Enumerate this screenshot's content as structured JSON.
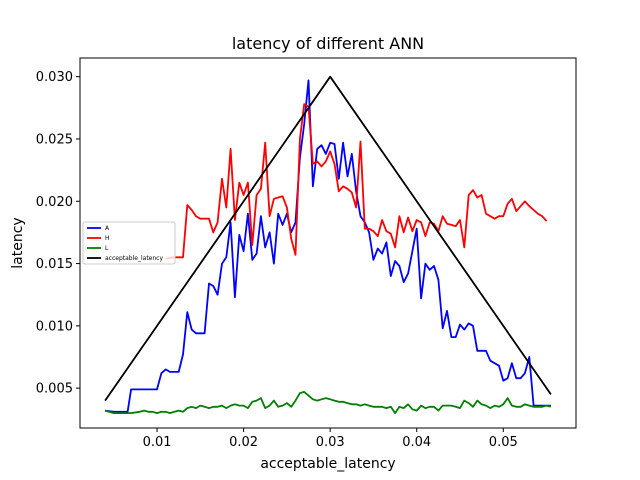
{
  "chart_data": {
    "type": "line",
    "title": "latency of different ANN",
    "xlabel": "acceptable_latency",
    "ylabel": "latency",
    "xlim": [
      0.0011,
      0.0584
    ],
    "ylim": [
      0.0018,
      0.0315
    ],
    "x_ticks": [
      0.01,
      0.02,
      0.03,
      0.04,
      0.05
    ],
    "x_tick_labels": [
      "0.01",
      "0.02",
      "0.03",
      "0.04",
      "0.05"
    ],
    "y_ticks": [
      0.005,
      0.01,
      0.015,
      0.02,
      0.025,
      0.03
    ],
    "y_tick_labels": [
      "0.005",
      "0.010",
      "0.015",
      "0.020",
      "0.025",
      "0.030"
    ],
    "grid": false,
    "legend_position": "center-left",
    "series": [
      {
        "name": "A",
        "color": "#0000ff",
        "points": [
          [
            0.004,
            0.0032
          ],
          [
            0.005,
            0.0031
          ],
          [
            0.006,
            0.0031
          ],
          [
            0.0066,
            0.0031
          ],
          [
            0.007,
            0.0049
          ],
          [
            0.008,
            0.0049
          ],
          [
            0.009,
            0.0049
          ],
          [
            0.01,
            0.0049
          ],
          [
            0.0105,
            0.0062
          ],
          [
            0.011,
            0.0065
          ],
          [
            0.0115,
            0.0063
          ],
          [
            0.0125,
            0.0063
          ],
          [
            0.013,
            0.0077
          ],
          [
            0.0135,
            0.0111
          ],
          [
            0.014,
            0.0097
          ],
          [
            0.0145,
            0.0094
          ],
          [
            0.0155,
            0.0094
          ],
          [
            0.016,
            0.0134
          ],
          [
            0.0165,
            0.0132
          ],
          [
            0.017,
            0.0125
          ],
          [
            0.0175,
            0.015
          ],
          [
            0.018,
            0.0155
          ],
          [
            0.0185,
            0.0183
          ],
          [
            0.019,
            0.0123
          ],
          [
            0.0195,
            0.0173
          ],
          [
            0.02,
            0.016
          ],
          [
            0.0205,
            0.019
          ],
          [
            0.021,
            0.0153
          ],
          [
            0.0215,
            0.0158
          ],
          [
            0.022,
            0.0188
          ],
          [
            0.0225,
            0.0163
          ],
          [
            0.023,
            0.0175
          ],
          [
            0.0235,
            0.015
          ],
          [
            0.024,
            0.019
          ],
          [
            0.0245,
            0.0181
          ],
          [
            0.025,
            0.019
          ],
          [
            0.0255,
            0.0175
          ],
          [
            0.026,
            0.0183
          ],
          [
            0.0265,
            0.0235
          ],
          [
            0.027,
            0.0262
          ],
          [
            0.0275,
            0.0297
          ],
          [
            0.028,
            0.0212
          ],
          [
            0.0285,
            0.0242
          ],
          [
            0.029,
            0.0245
          ],
          [
            0.0295,
            0.0238
          ],
          [
            0.03,
            0.0247
          ],
          [
            0.0305,
            0.0246
          ],
          [
            0.031,
            0.0218
          ],
          [
            0.0315,
            0.0247
          ],
          [
            0.032,
            0.022
          ],
          [
            0.0325,
            0.0238
          ],
          [
            0.033,
            0.0208
          ],
          [
            0.0335,
            0.0188
          ],
          [
            0.034,
            0.0183
          ],
          [
            0.0345,
            0.0175
          ],
          [
            0.035,
            0.0153
          ],
          [
            0.0355,
            0.0162
          ],
          [
            0.036,
            0.0158
          ],
          [
            0.0365,
            0.0167
          ],
          [
            0.037,
            0.014
          ],
          [
            0.0375,
            0.0152
          ],
          [
            0.038,
            0.0148
          ],
          [
            0.0385,
            0.0135
          ],
          [
            0.039,
            0.0142
          ],
          [
            0.0395,
            0.016
          ],
          [
            0.04,
            0.0178
          ],
          [
            0.0405,
            0.0122
          ],
          [
            0.041,
            0.015
          ],
          [
            0.0415,
            0.0145
          ],
          [
            0.042,
            0.0148
          ],
          [
            0.0425,
            0.0137
          ],
          [
            0.043,
            0.0098
          ],
          [
            0.0435,
            0.0112
          ],
          [
            0.044,
            0.0091
          ],
          [
            0.0445,
            0.0091
          ],
          [
            0.045,
            0.0101
          ],
          [
            0.0455,
            0.0097
          ],
          [
            0.046,
            0.0102
          ],
          [
            0.0465,
            0.01
          ],
          [
            0.047,
            0.008
          ],
          [
            0.0475,
            0.008
          ],
          [
            0.048,
            0.008
          ],
          [
            0.0485,
            0.0072
          ],
          [
            0.049,
            0.007
          ],
          [
            0.0495,
            0.0068
          ],
          [
            0.05,
            0.0056
          ],
          [
            0.0505,
            0.0058
          ],
          [
            0.051,
            0.007
          ],
          [
            0.0515,
            0.0058
          ],
          [
            0.052,
            0.0058
          ],
          [
            0.0525,
            0.0062
          ],
          [
            0.053,
            0.0075
          ],
          [
            0.0535,
            0.0036
          ],
          [
            0.0545,
            0.0036
          ],
          [
            0.0555,
            0.0036
          ]
        ]
      },
      {
        "name": "H",
        "color": "#ff0000",
        "points": [
          [
            0.011,
            0.0154
          ],
          [
            0.012,
            0.0155
          ],
          [
            0.013,
            0.0155
          ],
          [
            0.0135,
            0.0197
          ],
          [
            0.014,
            0.0193
          ],
          [
            0.0145,
            0.0188
          ],
          [
            0.015,
            0.0186
          ],
          [
            0.0155,
            0.0186
          ],
          [
            0.016,
            0.0186
          ],
          [
            0.0165,
            0.0175
          ],
          [
            0.017,
            0.0183
          ],
          [
            0.0175,
            0.0218
          ],
          [
            0.018,
            0.0195
          ],
          [
            0.0185,
            0.0242
          ],
          [
            0.019,
            0.0185
          ],
          [
            0.0195,
            0.0215
          ],
          [
            0.02,
            0.0205
          ],
          [
            0.0205,
            0.0215
          ],
          [
            0.021,
            0.0165
          ],
          [
            0.0215,
            0.0205
          ],
          [
            0.022,
            0.021
          ],
          [
            0.0225,
            0.0247
          ],
          [
            0.023,
            0.0188
          ],
          [
            0.0235,
            0.0202
          ],
          [
            0.024,
            0.0203
          ],
          [
            0.0245,
            0.0204
          ],
          [
            0.025,
            0.0195
          ],
          [
            0.0255,
            0.017
          ],
          [
            0.026,
            0.0157
          ],
          [
            0.0265,
            0.025
          ],
          [
            0.027,
            0.0278
          ],
          [
            0.0275,
            0.0276
          ],
          [
            0.028,
            0.023
          ],
          [
            0.0285,
            0.0232
          ],
          [
            0.029,
            0.0228
          ],
          [
            0.0295,
            0.0232
          ],
          [
            0.03,
            0.024
          ],
          [
            0.0305,
            0.023
          ],
          [
            0.031,
            0.0208
          ],
          [
            0.0315,
            0.0212
          ],
          [
            0.032,
            0.021
          ],
          [
            0.0325,
            0.0207
          ],
          [
            0.033,
            0.0195
          ],
          [
            0.0335,
            0.0248
          ],
          [
            0.034,
            0.0178
          ],
          [
            0.0345,
            0.0178
          ],
          [
            0.035,
            0.0176
          ],
          [
            0.0355,
            0.0172
          ],
          [
            0.036,
            0.0185
          ],
          [
            0.0365,
            0.0176
          ],
          [
            0.037,
            0.0174
          ],
          [
            0.0375,
            0.0163
          ],
          [
            0.038,
            0.0188
          ],
          [
            0.0385,
            0.0175
          ],
          [
            0.039,
            0.0187
          ],
          [
            0.0395,
            0.0176
          ],
          [
            0.04,
            0.0185
          ],
          [
            0.0405,
            0.0183
          ],
          [
            0.041,
            0.0172
          ],
          [
            0.0415,
            0.0183
          ],
          [
            0.042,
            0.0182
          ],
          [
            0.0425,
            0.0176
          ],
          [
            0.043,
            0.0188
          ],
          [
            0.0435,
            0.0182
          ],
          [
            0.044,
            0.0181
          ],
          [
            0.0445,
            0.018
          ],
          [
            0.045,
            0.0185
          ],
          [
            0.0455,
            0.0163
          ],
          [
            0.046,
            0.0205
          ],
          [
            0.0465,
            0.0209
          ],
          [
            0.047,
            0.0203
          ],
          [
            0.0475,
            0.0205
          ],
          [
            0.048,
            0.019
          ],
          [
            0.0485,
            0.0188
          ],
          [
            0.049,
            0.0186
          ],
          [
            0.0495,
            0.0188
          ],
          [
            0.05,
            0.0188
          ],
          [
            0.0505,
            0.0198
          ],
          [
            0.051,
            0.0202
          ],
          [
            0.0515,
            0.0192
          ],
          [
            0.052,
            0.0196
          ],
          [
            0.0525,
            0.02
          ],
          [
            0.053,
            0.0196
          ],
          [
            0.054,
            0.019
          ],
          [
            0.0545,
            0.0188
          ],
          [
            0.055,
            0.0184
          ]
        ]
      },
      {
        "name": "L",
        "color": "#008000",
        "points": [
          [
            0.004,
            0.0032
          ],
          [
            0.005,
            0.003
          ],
          [
            0.006,
            0.003
          ],
          [
            0.007,
            0.003
          ],
          [
            0.008,
            0.0031
          ],
          [
            0.0085,
            0.0032
          ],
          [
            0.009,
            0.0031
          ],
          [
            0.0095,
            0.0031
          ],
          [
            0.01,
            0.003
          ],
          [
            0.0105,
            0.0031
          ],
          [
            0.011,
            0.0031
          ],
          [
            0.0115,
            0.003
          ],
          [
            0.012,
            0.0031
          ],
          [
            0.0125,
            0.0032
          ],
          [
            0.013,
            0.0031
          ],
          [
            0.0135,
            0.0034
          ],
          [
            0.014,
            0.0035
          ],
          [
            0.0145,
            0.0034
          ],
          [
            0.015,
            0.0036
          ],
          [
            0.0155,
            0.0035
          ],
          [
            0.016,
            0.0034
          ],
          [
            0.0165,
            0.0035
          ],
          [
            0.017,
            0.0035
          ],
          [
            0.0175,
            0.0036
          ],
          [
            0.018,
            0.0034
          ],
          [
            0.0185,
            0.0036
          ],
          [
            0.019,
            0.0037
          ],
          [
            0.0195,
            0.0036
          ],
          [
            0.02,
            0.0036
          ],
          [
            0.0205,
            0.0034
          ],
          [
            0.021,
            0.0039
          ],
          [
            0.0215,
            0.004
          ],
          [
            0.022,
            0.0042
          ],
          [
            0.0225,
            0.0034
          ],
          [
            0.023,
            0.0036
          ],
          [
            0.0235,
            0.004
          ],
          [
            0.024,
            0.0035
          ],
          [
            0.0245,
            0.0036
          ],
          [
            0.025,
            0.0038
          ],
          [
            0.0255,
            0.0035
          ],
          [
            0.026,
            0.004
          ],
          [
            0.0265,
            0.0046
          ],
          [
            0.027,
            0.0047
          ],
          [
            0.0275,
            0.0044
          ],
          [
            0.028,
            0.0041
          ],
          [
            0.0285,
            0.004
          ],
          [
            0.029,
            0.0041
          ],
          [
            0.0295,
            0.0042
          ],
          [
            0.03,
            0.0041
          ],
          [
            0.0305,
            0.004
          ],
          [
            0.031,
            0.0039
          ],
          [
            0.0315,
            0.0039
          ],
          [
            0.032,
            0.0038
          ],
          [
            0.0325,
            0.0037
          ],
          [
            0.033,
            0.0037
          ],
          [
            0.0335,
            0.0036
          ],
          [
            0.034,
            0.0037
          ],
          [
            0.0345,
            0.0036
          ],
          [
            0.035,
            0.0035
          ],
          [
            0.0355,
            0.0035
          ],
          [
            0.036,
            0.0035
          ],
          [
            0.0365,
            0.0034
          ],
          [
            0.037,
            0.0035
          ],
          [
            0.0375,
            0.003
          ],
          [
            0.038,
            0.0035
          ],
          [
            0.0385,
            0.0034
          ],
          [
            0.039,
            0.0037
          ],
          [
            0.0395,
            0.0033
          ],
          [
            0.04,
            0.0032
          ],
          [
            0.0405,
            0.0036
          ],
          [
            0.041,
            0.0034
          ],
          [
            0.0415,
            0.0035
          ],
          [
            0.042,
            0.0035
          ],
          [
            0.0425,
            0.0032
          ],
          [
            0.043,
            0.0036
          ],
          [
            0.0435,
            0.0036
          ],
          [
            0.044,
            0.0036
          ],
          [
            0.0445,
            0.0035
          ],
          [
            0.045,
            0.0034
          ],
          [
            0.0455,
            0.004
          ],
          [
            0.046,
            0.0038
          ],
          [
            0.0465,
            0.0035
          ],
          [
            0.047,
            0.004
          ],
          [
            0.0475,
            0.0037
          ],
          [
            0.048,
            0.0036
          ],
          [
            0.0485,
            0.0034
          ],
          [
            0.049,
            0.0036
          ],
          [
            0.0495,
            0.0035
          ],
          [
            0.05,
            0.0037
          ],
          [
            0.0505,
            0.0042
          ],
          [
            0.051,
            0.0036
          ],
          [
            0.0515,
            0.0035
          ],
          [
            0.052,
            0.0035
          ],
          [
            0.0525,
            0.0037
          ],
          [
            0.053,
            0.0036
          ],
          [
            0.0535,
            0.0035
          ],
          [
            0.054,
            0.0035
          ],
          [
            0.0545,
            0.0035
          ],
          [
            0.055,
            0.0036
          ],
          [
            0.0555,
            0.0035
          ]
        ]
      },
      {
        "name": "acceptable_latency",
        "color": "#000000",
        "points": [
          [
            0.004,
            0.004
          ],
          [
            0.03,
            0.03
          ],
          [
            0.0555,
            0.0045
          ]
        ]
      }
    ]
  }
}
